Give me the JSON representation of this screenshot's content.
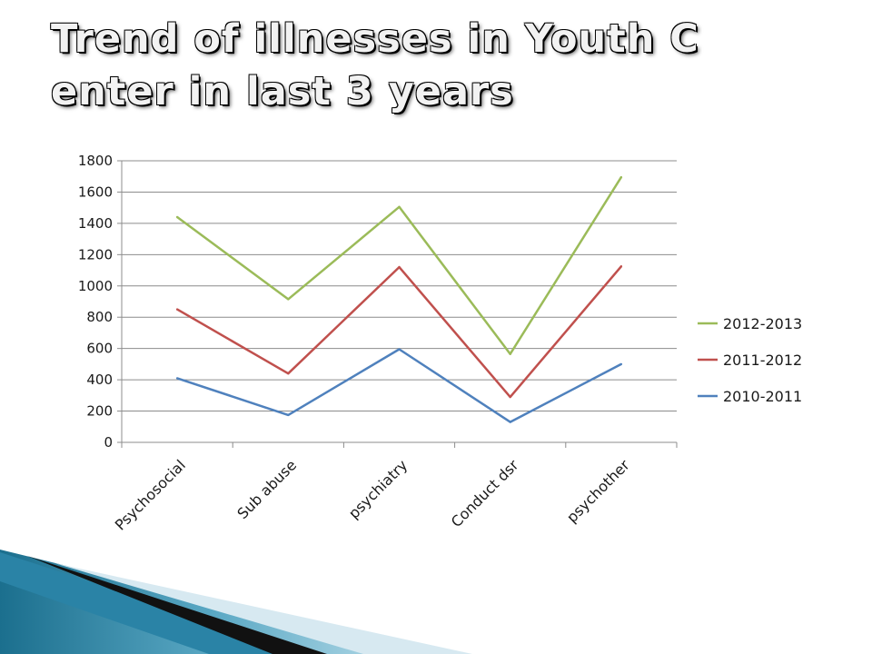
{
  "slide": {
    "title": "Trend of illnesses in Youth C enter in last 3 years"
  },
  "chart_data": {
    "type": "line",
    "title": "",
    "xlabel": "",
    "ylabel": "",
    "categories": [
      "Psychosocial",
      "Sub abuse",
      "psychiatry",
      "Conduct dsr",
      "psychother"
    ],
    "ylim": [
      0,
      1800
    ],
    "yticks": [
      0,
      200,
      400,
      600,
      800,
      1000,
      1200,
      1400,
      1600,
      1800
    ],
    "grid": "horizontal",
    "legend_position": "right",
    "series": [
      {
        "name": "2012-2013",
        "color": "#9bbb59",
        "values": [
          1440,
          915,
          1505,
          565,
          1695
        ]
      },
      {
        "name": "2011-2012",
        "color": "#c0504d",
        "values": [
          850,
          440,
          1120,
          290,
          1125
        ]
      },
      {
        "name": "2010-2011",
        "color": "#4f81bd",
        "values": [
          410,
          175,
          595,
          130,
          500
        ]
      }
    ]
  }
}
